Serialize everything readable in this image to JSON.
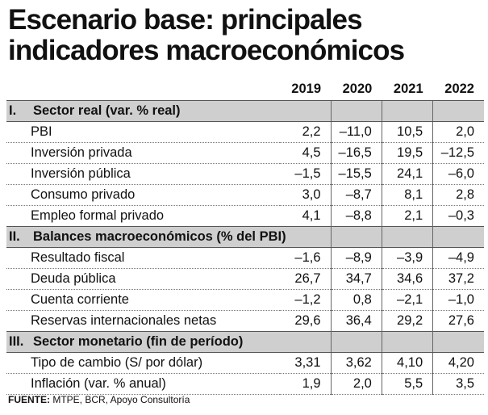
{
  "title": {
    "line1": "Escenario base: principales",
    "line2": "indicadores macroeconómicos"
  },
  "table": {
    "years": [
      "2019",
      "2020",
      "2021",
      "2022"
    ],
    "sections": [
      {
        "roman": "I.",
        "name": "Sector real (var. % real)",
        "rows": [
          {
            "label": "PBI",
            "values": [
              "2,2",
              "–11,0",
              "10,5",
              "2,0"
            ]
          },
          {
            "label": "Inversión privada",
            "values": [
              "4,5",
              "–16,5",
              "19,5",
              "–12,5"
            ]
          },
          {
            "label": "Inversión pública",
            "values": [
              "–1,5",
              "–15,5",
              "24,1",
              "–6,0"
            ]
          },
          {
            "label": "Consumo privado",
            "values": [
              "3,0",
              "–8,7",
              "8,1",
              "2,8"
            ]
          },
          {
            "label": "Empleo formal privado",
            "values": [
              "4,1",
              "–8,8",
              "2,1",
              "–0,3"
            ]
          }
        ]
      },
      {
        "roman": "II.",
        "name": "Balances macroeconómicos (% del PBI)",
        "rows": [
          {
            "label": "Resultado fiscal",
            "values": [
              "–1,6",
              "–8,9",
              "–3,9",
              "–4,9"
            ]
          },
          {
            "label": "Deuda pública",
            "values": [
              "26,7",
              "34,7",
              "34,6",
              "37,2"
            ]
          },
          {
            "label": "Cuenta corriente",
            "values": [
              "–1,2",
              "0,8",
              "–2,1",
              "–1,0"
            ]
          },
          {
            "label": "Reservas internacionales netas",
            "values": [
              "29,6",
              "36,4",
              "29,2",
              "27,6"
            ]
          }
        ]
      },
      {
        "roman": "III.",
        "name": "Sector monetario (fin de período)",
        "rows": [
          {
            "label": "Tipo de cambio (S/ por dólar)",
            "values": [
              "3,31",
              "3,62",
              "4,10",
              "4,20"
            ]
          },
          {
            "label": "Inflación (var. % anual)",
            "values": [
              "1,9",
              "2,0",
              "5,5",
              "3,5"
            ]
          }
        ]
      }
    ]
  },
  "source": {
    "label": "FUENTE:",
    "text": " MTPE, BCR, Apoyo Consultoría"
  }
}
